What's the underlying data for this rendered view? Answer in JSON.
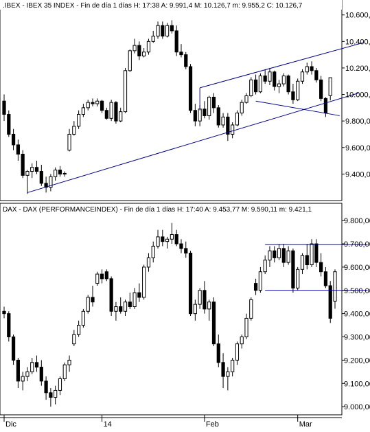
{
  "chart_data": [
    {
      "type": "candlestick",
      "title": ".IBEX - IBEX 35 INDEX - Fin de día 1 días  H: 17:38  A: 9.991,4  M: 10.126,7  m: 9.955,2  C: 10.126,7",
      "ylim": [
        9200,
        10640
      ],
      "yticks": [
        9400,
        9600,
        9800,
        10000,
        10200,
        10400,
        10600
      ],
      "ytick_labels": [
        "9.400,0",
        "9.600,0",
        "9.800,0",
        "10.000,0",
        "10.200,0",
        "10.400,0",
        "10.600,0"
      ],
      "candles": [
        {
          "o": 9950,
          "h": 10000,
          "l": 9800,
          "c": 9850
        },
        {
          "o": 9850,
          "h": 9880,
          "l": 9680,
          "c": 9700
        },
        {
          "o": 9700,
          "h": 9740,
          "l": 9580,
          "c": 9620
        },
        {
          "o": 9620,
          "h": 9660,
          "l": 9500,
          "c": 9550
        },
        {
          "o": 9550,
          "h": 9580,
          "l": 9370,
          "c": 9390
        },
        {
          "o": 9390,
          "h": 9430,
          "l": 9250,
          "c": 9420
        },
        {
          "o": 9420,
          "h": 9480,
          "l": 9370,
          "c": 9450
        },
        {
          "o": 9450,
          "h": 9500,
          "l": 9400,
          "c": 9420
        },
        {
          "o": 9420,
          "h": 9470,
          "l": 9310,
          "c": 9330
        },
        {
          "o": 9330,
          "h": 9380,
          "l": 9260,
          "c": 9300
        },
        {
          "o": 9300,
          "h": 9400,
          "l": 9270,
          "c": 9380
        },
        {
          "o": 9380,
          "h": 9450,
          "l": 9350,
          "c": 9430
        },
        {
          "o": 9430,
          "h": 9460,
          "l": 9380,
          "c": 9400
        },
        {
          "o": 9400,
          "h": 9420,
          "l": 9380,
          "c": 9405
        },
        {
          "o": 9580,
          "h": 9740,
          "l": 9570,
          "c": 9700
        },
        {
          "o": 9700,
          "h": 9800,
          "l": 9690,
          "c": 9760
        },
        {
          "o": 9760,
          "h": 9880,
          "l": 9740,
          "c": 9850
        },
        {
          "o": 9850,
          "h": 9930,
          "l": 9830,
          "c": 9900
        },
        {
          "o": 9900,
          "h": 9960,
          "l": 9880,
          "c": 9940
        },
        {
          "o": 9940,
          "h": 9970,
          "l": 9910,
          "c": 9930
        },
        {
          "o": 9930,
          "h": 9970,
          "l": 9910,
          "c": 9950
        },
        {
          "o": 9950,
          "h": 9960,
          "l": 9860,
          "c": 9880
        },
        {
          "o": 9880,
          "h": 9900,
          "l": 9810,
          "c": 9820
        },
        {
          "o": 9820,
          "h": 9960,
          "l": 9800,
          "c": 9940
        },
        {
          "o": 9940,
          "h": 9950,
          "l": 9780,
          "c": 9800
        },
        {
          "o": 9800,
          "h": 9900,
          "l": 9790,
          "c": 9870
        },
        {
          "o": 9870,
          "h": 10200,
          "l": 9860,
          "c": 10180
        },
        {
          "o": 10180,
          "h": 10340,
          "l": 10170,
          "c": 10330
        },
        {
          "o": 10330,
          "h": 10420,
          "l": 10310,
          "c": 10370
        },
        {
          "o": 10370,
          "h": 10400,
          "l": 10260,
          "c": 10290
        },
        {
          "o": 10290,
          "h": 10350,
          "l": 10280,
          "c": 10320
        },
        {
          "o": 10320,
          "h": 10420,
          "l": 10300,
          "c": 10400
        },
        {
          "o": 10400,
          "h": 10480,
          "l": 10390,
          "c": 10440
        },
        {
          "o": 10440,
          "h": 10550,
          "l": 10420,
          "c": 10520
        },
        {
          "o": 10520,
          "h": 10550,
          "l": 10420,
          "c": 10440
        },
        {
          "o": 10440,
          "h": 10540,
          "l": 10430,
          "c": 10520
        },
        {
          "o": 10520,
          "h": 10560,
          "l": 10460,
          "c": 10480
        },
        {
          "o": 10480,
          "h": 10520,
          "l": 10290,
          "c": 10320
        },
        {
          "o": 10320,
          "h": 10380,
          "l": 10280,
          "c": 10300
        },
        {
          "o": 10300,
          "h": 10320,
          "l": 10190,
          "c": 10210
        },
        {
          "o": 10210,
          "h": 10230,
          "l": 9860,
          "c": 9880
        },
        {
          "o": 9880,
          "h": 9930,
          "l": 9760,
          "c": 9800
        },
        {
          "o": 9800,
          "h": 9920,
          "l": 9760,
          "c": 9890
        },
        {
          "o": 9890,
          "h": 9950,
          "l": 9820,
          "c": 9840
        },
        {
          "o": 9840,
          "h": 9990,
          "l": 9810,
          "c": 9980
        },
        {
          "o": 9980,
          "h": 10010,
          "l": 9860,
          "c": 9900
        },
        {
          "o": 9900,
          "h": 9920,
          "l": 9750,
          "c": 9770
        },
        {
          "o": 9770,
          "h": 9860,
          "l": 9750,
          "c": 9830
        },
        {
          "o": 9830,
          "h": 9860,
          "l": 9650,
          "c": 9700
        },
        {
          "o": 9700,
          "h": 9790,
          "l": 9670,
          "c": 9770
        },
        {
          "o": 9770,
          "h": 9880,
          "l": 9760,
          "c": 9860
        },
        {
          "o": 9860,
          "h": 9960,
          "l": 9840,
          "c": 9940
        },
        {
          "o": 9940,
          "h": 10010,
          "l": 9930,
          "c": 9990
        },
        {
          "o": 9990,
          "h": 10130,
          "l": 9980,
          "c": 10110
        },
        {
          "o": 10110,
          "h": 10150,
          "l": 10000,
          "c": 10020
        },
        {
          "o": 10020,
          "h": 10160,
          "l": 10010,
          "c": 10140
        },
        {
          "o": 10140,
          "h": 10190,
          "l": 10080,
          "c": 10100
        },
        {
          "o": 10100,
          "h": 10200,
          "l": 10070,
          "c": 10170
        },
        {
          "o": 10170,
          "h": 10180,
          "l": 10030,
          "c": 10060
        },
        {
          "o": 10060,
          "h": 10110,
          "l": 10010,
          "c": 10080
        },
        {
          "o": 10080,
          "h": 10160,
          "l": 10060,
          "c": 10140
        },
        {
          "o": 10140,
          "h": 10150,
          "l": 10000,
          "c": 10020
        },
        {
          "o": 10020,
          "h": 10080,
          "l": 9930,
          "c": 9960
        },
        {
          "o": 9960,
          "h": 10120,
          "l": 9950,
          "c": 10100
        },
        {
          "o": 10100,
          "h": 10190,
          "l": 10080,
          "c": 10170
        },
        {
          "o": 10170,
          "h": 10240,
          "l": 10150,
          "c": 10210
        },
        {
          "o": 10210,
          "h": 10250,
          "l": 10150,
          "c": 10180
        },
        {
          "o": 10180,
          "h": 10200,
          "l": 10090,
          "c": 10110
        },
        {
          "o": 10110,
          "h": 10140,
          "l": 9950,
          "c": 9970
        },
        {
          "o": 9970,
          "h": 9980,
          "l": 9830,
          "c": 9860
        },
        {
          "o": 9991.4,
          "h": 10126.7,
          "l": 9955.2,
          "c": 10126.7
        }
      ],
      "trendlines": [
        {
          "i0": 5,
          "v0": 9260,
          "i1": 76,
          "v1": 10010
        },
        {
          "i0": 42,
          "v0": 10050,
          "i1": 77,
          "v1": 10390
        },
        {
          "i0": 42,
          "v0": 10050,
          "i1": 42,
          "v1": 9880
        },
        {
          "i0": 54,
          "v0": 9950,
          "i1": 72,
          "v1": 9840
        }
      ],
      "x_ticks": []
    },
    {
      "type": "candlestick",
      "title": "DAX - DAX (PERFORMANCEINDEX) - Fin de día 1 días  H: 17:40  A: 9.453,77  M: 9.590,11  m: 9.421,1",
      "ylim": [
        8965,
        9830
      ],
      "yticks": [
        9000,
        9100,
        9200,
        9300,
        9400,
        9500,
        9600,
        9700,
        9800
      ],
      "ytick_labels": [
        "9.000,00",
        "9.100,00",
        "9.200,00",
        "9.300,00",
        "9.400,00",
        "9.500,00",
        "9.600,00",
        "9.700,00",
        "9.800,00"
      ],
      "candles": [
        {
          "o": 9410,
          "h": 9430,
          "l": 9380,
          "c": 9400
        },
        {
          "o": 9400,
          "h": 9410,
          "l": 9280,
          "c": 9300
        },
        {
          "o": 9300,
          "h": 9310,
          "l": 9180,
          "c": 9200
        },
        {
          "o": 9200,
          "h": 9210,
          "l": 9080,
          "c": 9110
        },
        {
          "o": 9110,
          "h": 9150,
          "l": 9070,
          "c": 9130
        },
        {
          "o": 9130,
          "h": 9170,
          "l": 9110,
          "c": 9150
        },
        {
          "o": 9150,
          "h": 9210,
          "l": 9140,
          "c": 9190
        },
        {
          "o": 9190,
          "h": 9220,
          "l": 9150,
          "c": 9170
        },
        {
          "o": 9170,
          "h": 9200,
          "l": 9090,
          "c": 9110
        },
        {
          "o": 9110,
          "h": 9130,
          "l": 9030,
          "c": 9060
        },
        {
          "o": 9060,
          "h": 9080,
          "l": 9000,
          "c": 9040
        },
        {
          "o": 9040,
          "h": 9090,
          "l": 9010,
          "c": 9070
        },
        {
          "o": 9070,
          "h": 9130,
          "l": 9050,
          "c": 9120
        },
        {
          "o": 9120,
          "h": 9190,
          "l": 9110,
          "c": 9180
        },
        {
          "o": 9180,
          "h": 9220,
          "l": 9150,
          "c": 9200
        },
        {
          "o": 9270,
          "h": 9330,
          "l": 9260,
          "c": 9310
        },
        {
          "o": 9310,
          "h": 9370,
          "l": 9300,
          "c": 9350
        },
        {
          "o": 9350,
          "h": 9420,
          "l": 9340,
          "c": 9410
        },
        {
          "o": 9410,
          "h": 9480,
          "l": 9400,
          "c": 9470
        },
        {
          "o": 9470,
          "h": 9520,
          "l": 9430,
          "c": 9450
        },
        {
          "o": 9530,
          "h": 9580,
          "l": 9520,
          "c": 9570
        },
        {
          "o": 9570,
          "h": 9590,
          "l": 9530,
          "c": 9550
        },
        {
          "o": 9580,
          "h": 9590,
          "l": 9540,
          "c": 9550
        },
        {
          "o": 9550,
          "h": 9560,
          "l": 9390,
          "c": 9410
        },
        {
          "o": 9410,
          "h": 9450,
          "l": 9370,
          "c": 9430
        },
        {
          "o": 9430,
          "h": 9470,
          "l": 9400,
          "c": 9410
        },
        {
          "o": 9410,
          "h": 9460,
          "l": 9390,
          "c": 9450
        },
        {
          "o": 9450,
          "h": 9490,
          "l": 9420,
          "c": 9430
        },
        {
          "o": 9430,
          "h": 9510,
          "l": 9420,
          "c": 9490
        },
        {
          "o": 9490,
          "h": 9530,
          "l": 9450,
          "c": 9470
        },
        {
          "o": 9470,
          "h": 9610,
          "l": 9460,
          "c": 9600
        },
        {
          "o": 9600,
          "h": 9660,
          "l": 9580,
          "c": 9640
        },
        {
          "o": 9640,
          "h": 9710,
          "l": 9620,
          "c": 9690
        },
        {
          "o": 9690,
          "h": 9760,
          "l": 9680,
          "c": 9730
        },
        {
          "o": 9730,
          "h": 9760,
          "l": 9690,
          "c": 9710
        },
        {
          "o": 9710,
          "h": 9730,
          "l": 9680,
          "c": 9720
        },
        {
          "o": 9720,
          "h": 9790,
          "l": 9700,
          "c": 9740
        },
        {
          "o": 9740,
          "h": 9760,
          "l": 9690,
          "c": 9700
        },
        {
          "o": 9700,
          "h": 9720,
          "l": 9660,
          "c": 9680
        },
        {
          "o": 9680,
          "h": 9710,
          "l": 9640,
          "c": 9660
        },
        {
          "o": 9660,
          "h": 9670,
          "l": 9390,
          "c": 9400
        },
        {
          "o": 9400,
          "h": 9460,
          "l": 9370,
          "c": 9440
        },
        {
          "o": 9440,
          "h": 9510,
          "l": 9420,
          "c": 9500
        },
        {
          "o": 9500,
          "h": 9540,
          "l": 9400,
          "c": 9420
        },
        {
          "o": 9420,
          "h": 9460,
          "l": 9370,
          "c": 9450
        },
        {
          "o": 9450,
          "h": 9470,
          "l": 9260,
          "c": 9270
        },
        {
          "o": 9270,
          "h": 9310,
          "l": 9170,
          "c": 9190
        },
        {
          "o": 9190,
          "h": 9230,
          "l": 9080,
          "c": 9130
        },
        {
          "o": 9130,
          "h": 9170,
          "l": 9070,
          "c": 9150
        },
        {
          "o": 9150,
          "h": 9210,
          "l": 9130,
          "c": 9200
        },
        {
          "o": 9200,
          "h": 9280,
          "l": 9180,
          "c": 9270
        },
        {
          "o": 9270,
          "h": 9310,
          "l": 9250,
          "c": 9300
        },
        {
          "o": 9300,
          "h": 9400,
          "l": 9290,
          "c": 9380
        },
        {
          "o": 9380,
          "h": 9470,
          "l": 9370,
          "c": 9460
        },
        {
          "o": 9530,
          "h": 9550,
          "l": 9480,
          "c": 9500
        },
        {
          "o": 9500,
          "h": 9600,
          "l": 9490,
          "c": 9580
        },
        {
          "o": 9580,
          "h": 9650,
          "l": 9570,
          "c": 9630
        },
        {
          "o": 9630,
          "h": 9690,
          "l": 9600,
          "c": 9670
        },
        {
          "o": 9670,
          "h": 9690,
          "l": 9620,
          "c": 9640
        },
        {
          "o": 9640,
          "h": 9700,
          "l": 9630,
          "c": 9680
        },
        {
          "o": 9680,
          "h": 9700,
          "l": 9600,
          "c": 9620
        },
        {
          "o": 9620,
          "h": 9690,
          "l": 9610,
          "c": 9670
        },
        {
          "o": 9670,
          "h": 9680,
          "l": 9490,
          "c": 9510
        },
        {
          "o": 9510,
          "h": 9600,
          "l": 9500,
          "c": 9590
        },
        {
          "o": 9590,
          "h": 9660,
          "l": 9570,
          "c": 9650
        },
        {
          "o": 9650,
          "h": 9700,
          "l": 9590,
          "c": 9610
        },
        {
          "o": 9610,
          "h": 9720,
          "l": 9600,
          "c": 9700
        },
        {
          "o": 9700,
          "h": 9720,
          "l": 9600,
          "c": 9620
        },
        {
          "o": 9620,
          "h": 9660,
          "l": 9560,
          "c": 9580
        },
        {
          "o": 9580,
          "h": 9600,
          "l": 9510,
          "c": 9520
        },
        {
          "o": 9520,
          "h": 9540,
          "l": 9360,
          "c": 9380
        },
        {
          "o": 9453.77,
          "h": 9590.11,
          "l": 9421.1,
          "c": 9580
        }
      ],
      "trendlines": [
        {
          "i0": 56,
          "v0": 9697,
          "i1": 78,
          "v1": 9697
        },
        {
          "i0": 56,
          "v0": 9500,
          "i1": 78,
          "v1": 9500
        }
      ],
      "x_ticks": [
        {
          "i": 0,
          "label": "Dic"
        },
        {
          "i": 21,
          "label": "14"
        },
        {
          "i": 43,
          "label": "Feb"
        },
        {
          "i": 63,
          "label": "Mar"
        }
      ]
    }
  ],
  "colors": {
    "background": "#ffffff",
    "candle": "#000000",
    "trendline": "#00008b",
    "axis": "#000000",
    "grid": "#aaaaaa"
  }
}
